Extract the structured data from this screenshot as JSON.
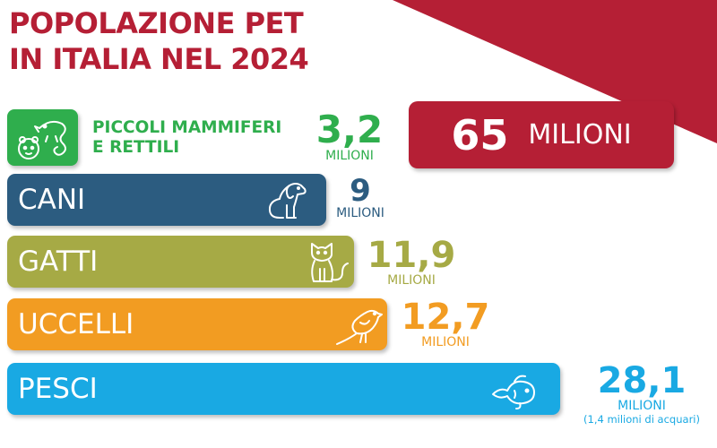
{
  "title": {
    "line1": "POPOLAZIONE PET",
    "line2": "IN ITALIA NEL 2024"
  },
  "total": {
    "value": "65",
    "unit": "MILIONI"
  },
  "colors": {
    "brand": "#b51f35",
    "piccoli": "#2fae4d",
    "cani": "#2c5c80",
    "gatti": "#a6aa45",
    "uccelli": "#f29c22",
    "pesci": "#19a9e3"
  },
  "chart_data": {
    "type": "bar",
    "title": "POPOLAZIONE PET IN ITALIA NEL 2024",
    "unit": "MILIONI",
    "total": 65,
    "categories": [
      "PICCOLI MAMMIFERI E RETTILI",
      "CANI",
      "GATTI",
      "UCCELLI",
      "PESCI"
    ],
    "values": [
      3.2,
      9,
      11.9,
      12.7,
      28.1
    ],
    "value_labels": [
      "3,2",
      "9",
      "11,9",
      "12,7",
      "28,1"
    ],
    "notes": [
      "",
      "",
      "",
      "",
      "(1,4 milioni di acquari)"
    ],
    "icons": [
      "hamster-chameleon-icon",
      "dog-icon",
      "cat-icon",
      "bird-icon",
      "fish-icon"
    ]
  },
  "categories": {
    "piccoli": {
      "label_line1": "PICCOLI MAMMIFERI",
      "label_line2": "E RETTILI",
      "value": "3,2",
      "unit": "MILIONI"
    },
    "cani": {
      "label": "CANI",
      "value": "9",
      "unit": "MILIONI"
    },
    "gatti": {
      "label": "GATTI",
      "value": "11,9",
      "unit": "MILIONI"
    },
    "uccelli": {
      "label": "UCCELLI",
      "value": "12,7",
      "unit": "MILIONI"
    },
    "pesci": {
      "label": "PESCI",
      "value": "28,1",
      "unit": "MILIONI",
      "note": "(1,4 milioni di acquari)"
    }
  }
}
